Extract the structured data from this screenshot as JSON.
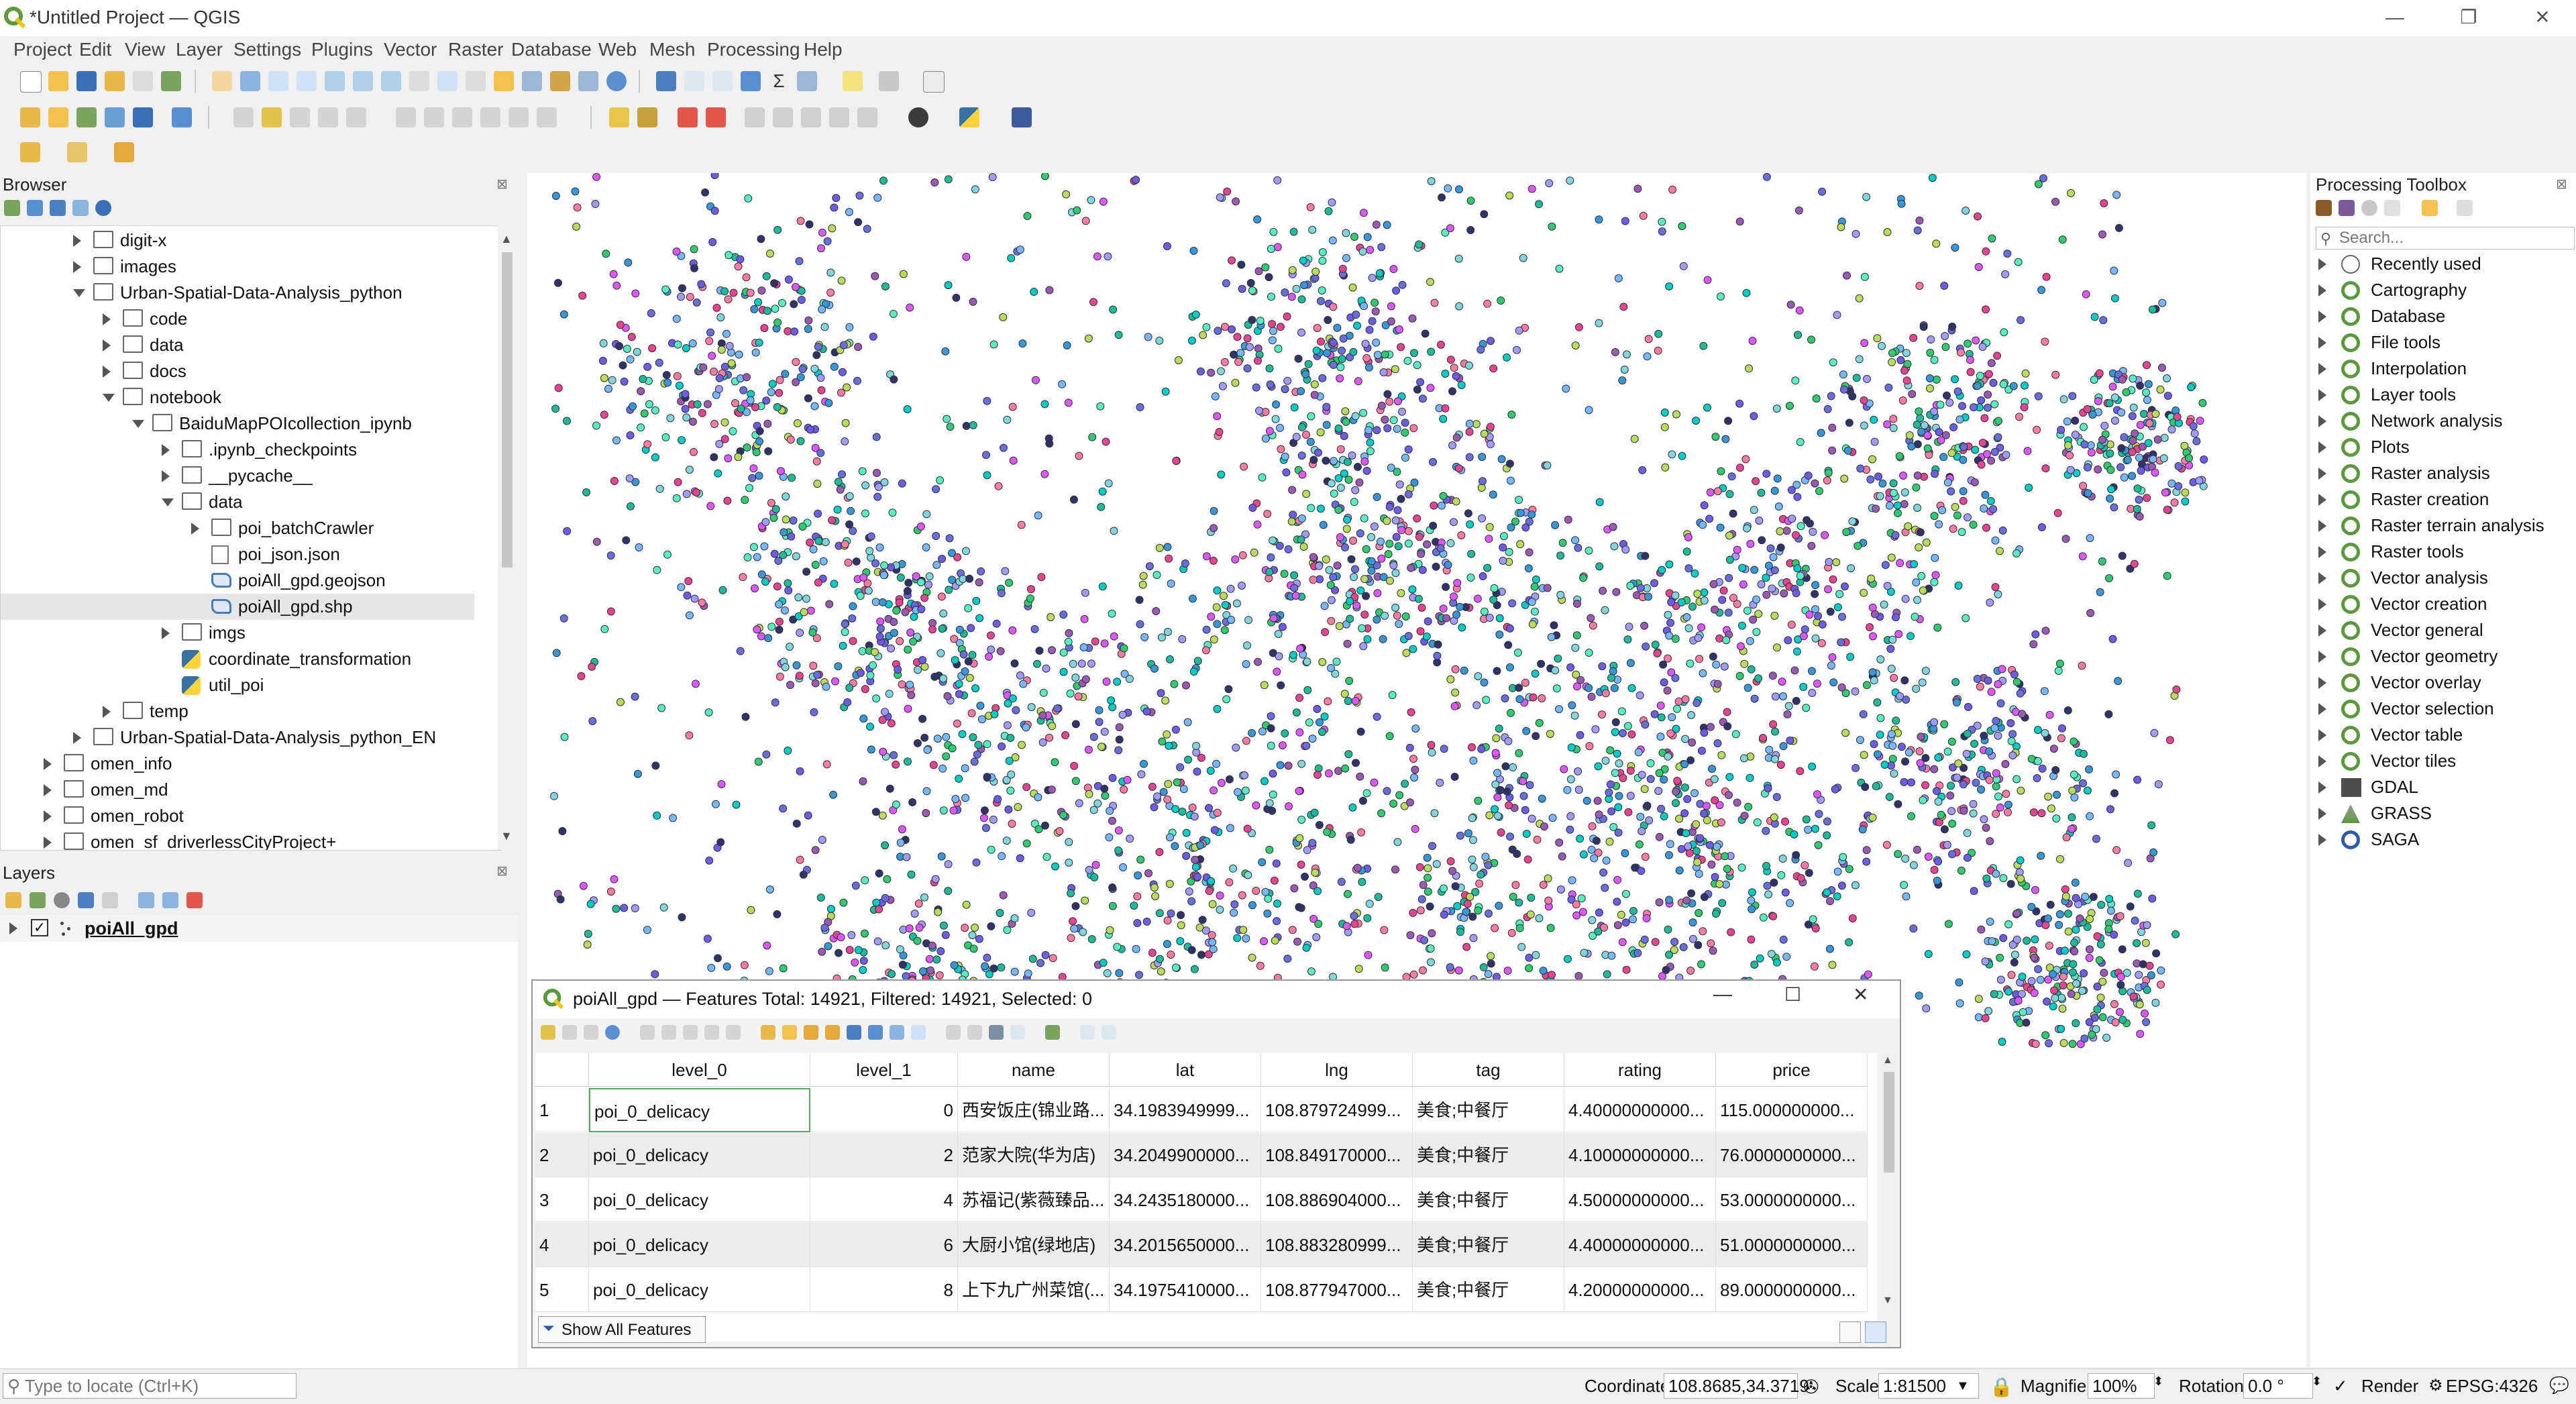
{
  "window": {
    "title": "*Untitled Project — QGIS"
  },
  "menu": [
    "Project",
    "Edit",
    "View",
    "Layer",
    "Settings",
    "Plugins",
    "Vector",
    "Raster",
    "Database",
    "Web",
    "Mesh",
    "Processing",
    "Help"
  ],
  "browser": {
    "title": "Browser",
    "items": [
      {
        "label": "digit-x",
        "depth": 3,
        "icon": "folder",
        "state": "collapsed"
      },
      {
        "label": "images",
        "depth": 3,
        "icon": "folder",
        "state": "collapsed"
      },
      {
        "label": "Urban-Spatial-Data-Analysis_python",
        "depth": 3,
        "icon": "folder",
        "state": "expanded"
      },
      {
        "label": "code",
        "depth": 4,
        "icon": "folder",
        "state": "collapsed"
      },
      {
        "label": "data",
        "depth": 4,
        "icon": "folder",
        "state": "collapsed"
      },
      {
        "label": "docs",
        "depth": 4,
        "icon": "folder",
        "state": "collapsed"
      },
      {
        "label": "notebook",
        "depth": 4,
        "icon": "folder",
        "state": "expanded"
      },
      {
        "label": "BaiduMapPOIcollection_ipynb",
        "depth": 5,
        "icon": "folder",
        "state": "expanded"
      },
      {
        "label": ".ipynb_checkpoints",
        "depth": 6,
        "icon": "folder",
        "state": "collapsed"
      },
      {
        "label": "__pycache__",
        "depth": 6,
        "icon": "folder",
        "state": "collapsed"
      },
      {
        "label": "data",
        "depth": 6,
        "icon": "folder",
        "state": "expanded"
      },
      {
        "label": "poi_batchCrawler",
        "depth": 7,
        "icon": "folder",
        "state": "collapsed"
      },
      {
        "label": "poi_json.json",
        "depth": 7,
        "icon": "json",
        "state": "none"
      },
      {
        "label": "poiAll_gpd.geojson",
        "depth": 7,
        "icon": "shp",
        "state": "none"
      },
      {
        "label": "poiAll_gpd.shp",
        "depth": 7,
        "icon": "shp",
        "state": "none",
        "selected": true
      },
      {
        "label": "imgs",
        "depth": 6,
        "icon": "folder",
        "state": "collapsed"
      },
      {
        "label": "coordinate_transformation",
        "depth": 6,
        "icon": "py",
        "state": "none"
      },
      {
        "label": "util_poi",
        "depth": 6,
        "icon": "py",
        "state": "none"
      },
      {
        "label": "temp",
        "depth": 4,
        "icon": "folder",
        "state": "collapsed"
      },
      {
        "label": "Urban-Spatial-Data-Analysis_python_EN",
        "depth": 3,
        "icon": "folder",
        "state": "collapsed"
      },
      {
        "label": "omen_info",
        "depth": 2,
        "icon": "folder",
        "state": "collapsed"
      },
      {
        "label": "omen_md",
        "depth": 2,
        "icon": "folder",
        "state": "collapsed"
      },
      {
        "label": "omen_robot",
        "depth": 2,
        "icon": "folder",
        "state": "collapsed"
      },
      {
        "label": "omen_sf_driverlessCityProject+",
        "depth": 2,
        "icon": "folder",
        "state": "collapsed"
      }
    ]
  },
  "layers": {
    "title": "Layers",
    "items": [
      {
        "label": "poiAll_gpd",
        "checked": true
      }
    ]
  },
  "toolbox": {
    "title": "Processing Toolbox",
    "search_placeholder": "Search...",
    "items": [
      "Recently used",
      "Cartography",
      "Database",
      "File tools",
      "Interpolation",
      "Layer tools",
      "Network analysis",
      "Plots",
      "Raster analysis",
      "Raster creation",
      "Raster terrain analysis",
      "Raster tools",
      "Vector analysis",
      "Vector creation",
      "Vector general",
      "Vector geometry",
      "Vector overlay",
      "Vector selection",
      "Vector table",
      "Vector tiles",
      "GDAL",
      "GRASS",
      "SAGA"
    ]
  },
  "attribute_table": {
    "title": "poiAll_gpd — Features Total: 14921, Filtered: 14921, Selected: 0",
    "columns": [
      "level_0",
      "level_1",
      "name",
      "lat",
      "lng",
      "tag",
      "rating",
      "price"
    ],
    "rows": [
      {
        "n": "1",
        "cells": [
          "poi_0_delicacy",
          "0",
          "西安饭庄(锦业路...",
          "34.1983949999...",
          "108.879724999...",
          "美食;中餐厅",
          "4.40000000000...",
          "115.000000000..."
        ]
      },
      {
        "n": "2",
        "cells": [
          "poi_0_delicacy",
          "2",
          "范家大院(华为店)",
          "34.2049900000...",
          "108.849170000...",
          "美食;中餐厅",
          "4.10000000000...",
          "76.0000000000..."
        ]
      },
      {
        "n": "3",
        "cells": [
          "poi_0_delicacy",
          "4",
          "苏福记(紫薇臻品...",
          "34.2435180000...",
          "108.886904000...",
          "美食;中餐厅",
          "4.50000000000...",
          "53.0000000000..."
        ]
      },
      {
        "n": "4",
        "cells": [
          "poi_0_delicacy",
          "6",
          "大厨小馆(绿地店)",
          "34.2015650000...",
          "108.883280999...",
          "美食;中餐厅",
          "4.40000000000...",
          "51.0000000000..."
        ]
      },
      {
        "n": "5",
        "cells": [
          "poi_0_delicacy",
          "8",
          "上下九广州菜馆(...",
          "34.1975410000...",
          "108.877947000...",
          "美食;中餐厅",
          "4.20000000000...",
          "89.0000000000..."
        ]
      }
    ],
    "filter_button": "Show All Features"
  },
  "status": {
    "locate_placeholder": "Type to locate (Ctrl+K)",
    "coordinate_label": "Coordinate",
    "coordinate_value": "108.8685,34.3719",
    "scale_label": "Scale",
    "scale_value": "1:81500",
    "magnifier_label": "Magnifier",
    "magnifier_value": "100%",
    "rotation_label": "Rotation",
    "rotation_value": "0.0 °",
    "render_label": "Render",
    "crs": "EPSG:4326"
  },
  "colors": {
    "accent": "#5b9a3c",
    "selection": "#e6e6e6"
  }
}
